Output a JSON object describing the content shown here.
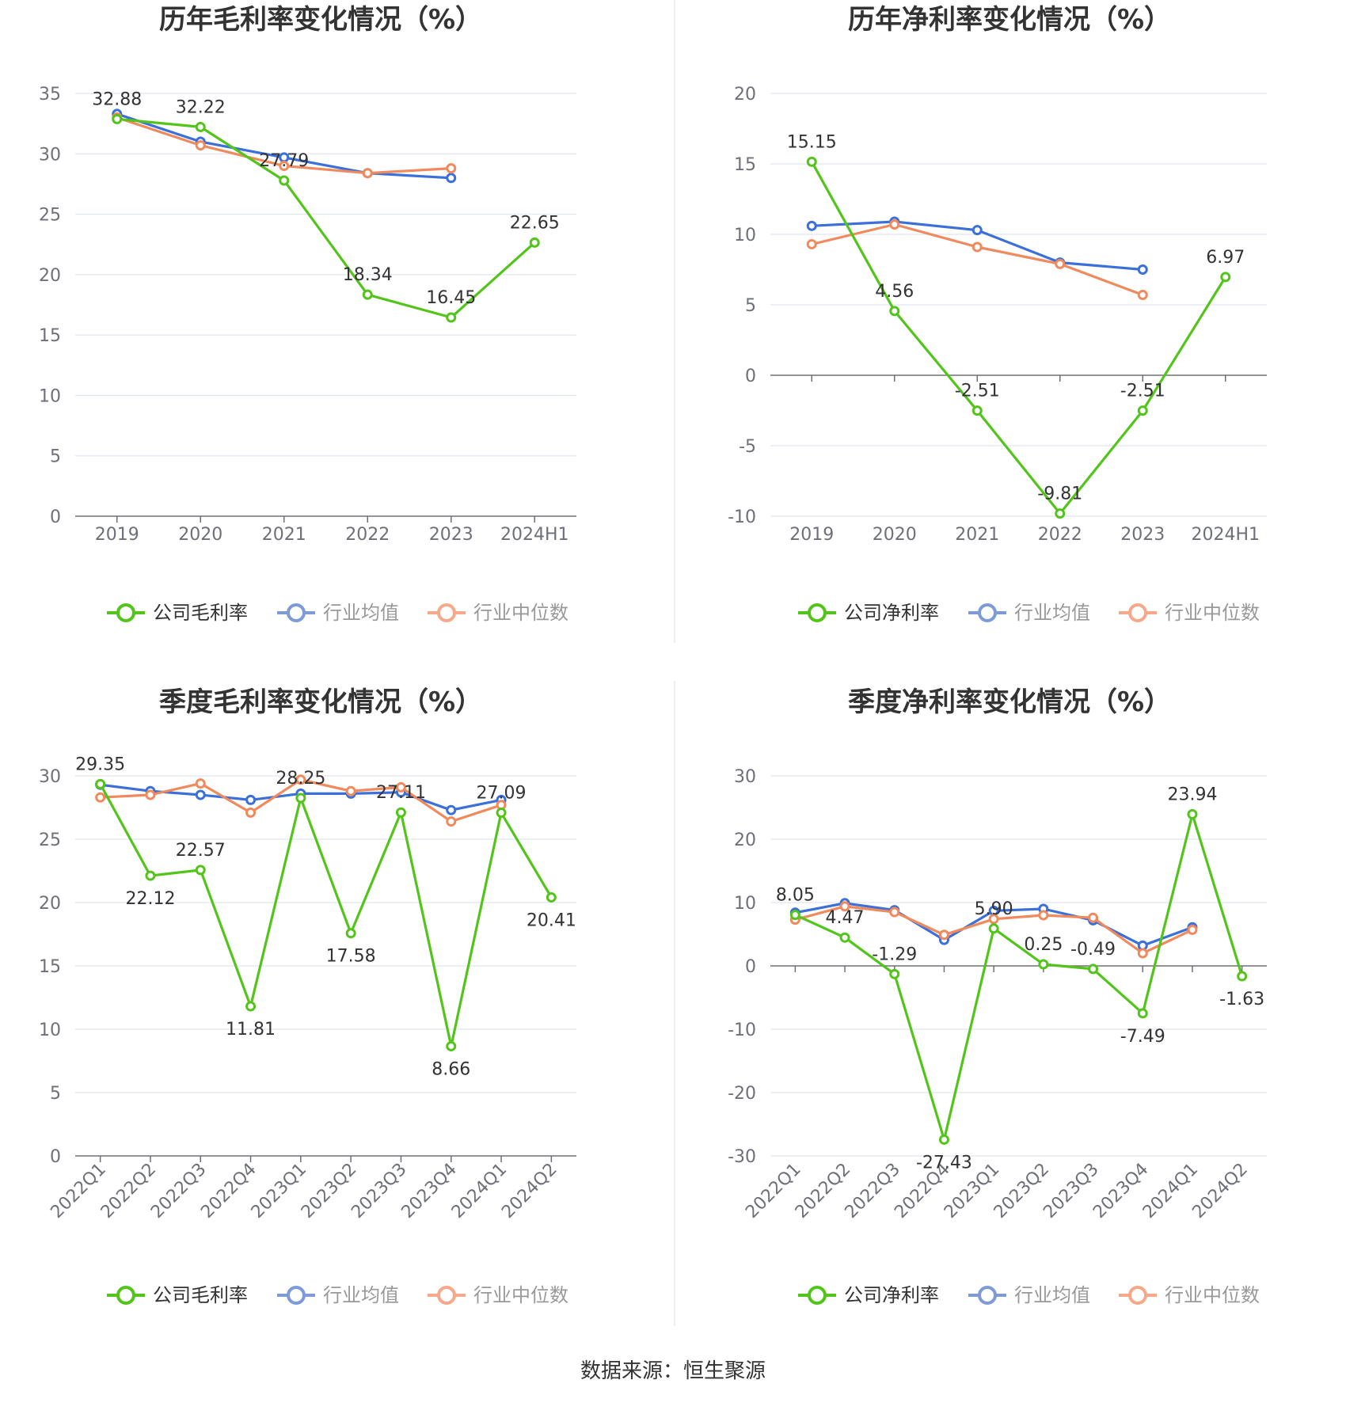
{
  "source_text": "数据来源：恒生聚源",
  "colors": {
    "company": "#52c41a",
    "avg": "#3b6fd9",
    "median": "#f08a5d",
    "grid": "#e0e6f1",
    "axis": "#6e7079",
    "legend_inactive": "#7e9bd8",
    "legend_inactive_text": "#999999"
  },
  "chart_data": [
    {
      "type": "line",
      "title": "历年毛利率变化情况（%）",
      "categories": [
        "2019",
        "2020",
        "2021",
        "2022",
        "2023",
        "2024H1"
      ],
      "ylim": [
        0,
        35
      ],
      "yticks": [
        0,
        5,
        10,
        15,
        20,
        25,
        30,
        35
      ],
      "rotate_x": false,
      "legend": [
        "公司毛利率",
        "行业均值",
        "行业中位数"
      ],
      "series": [
        {
          "name": "公司毛利率",
          "values": [
            32.88,
            32.22,
            27.79,
            18.34,
            16.45,
            22.65
          ],
          "labels": [
            "32.88",
            "32.22",
            "27.79",
            "18.34",
            "16.45",
            "22.65"
          ]
        },
        {
          "name": "行业均值",
          "values": [
            33.3,
            31.0,
            29.7,
            28.4,
            28.0,
            null
          ]
        },
        {
          "name": "行业中位数",
          "values": [
            33.0,
            30.7,
            29.0,
            28.4,
            28.8,
            null
          ]
        }
      ]
    },
    {
      "type": "line",
      "title": "历年净利率变化情况（%）",
      "categories": [
        "2019",
        "2020",
        "2021",
        "2022",
        "2023",
        "2024H1"
      ],
      "ylim": [
        -10,
        20
      ],
      "yticks": [
        -10,
        -5,
        0,
        5,
        10,
        15,
        20
      ],
      "rotate_x": false,
      "legend": [
        "公司净利率",
        "行业均值",
        "行业中位数"
      ],
      "series": [
        {
          "name": "公司净利率",
          "values": [
            15.15,
            4.56,
            -2.51,
            -9.81,
            -2.51,
            6.97
          ],
          "labels": [
            "15.15",
            "4.56",
            "-2.51",
            "-9.81",
            "-2.51",
            "6.97"
          ]
        },
        {
          "name": "行业均值",
          "values": [
            10.6,
            10.9,
            10.3,
            8.0,
            7.5,
            null
          ]
        },
        {
          "name": "行业中位数",
          "values": [
            9.3,
            10.7,
            9.1,
            7.9,
            5.7,
            null
          ]
        }
      ]
    },
    {
      "type": "line",
      "title": "季度毛利率变化情况（%）",
      "categories": [
        "2022Q1",
        "2022Q2",
        "2022Q3",
        "2022Q4",
        "2023Q1",
        "2023Q2",
        "2023Q3",
        "2023Q4",
        "2024Q1",
        "2024Q2"
      ],
      "ylim": [
        0,
        30
      ],
      "yticks": [
        0,
        5,
        10,
        15,
        20,
        25,
        30
      ],
      "rotate_x": true,
      "legend": [
        "公司毛利率",
        "行业均值",
        "行业中位数"
      ],
      "series": [
        {
          "name": "公司毛利率",
          "values": [
            29.35,
            22.12,
            22.57,
            11.81,
            28.25,
            17.58,
            27.11,
            8.66,
            27.09,
            20.41
          ],
          "labels": [
            "29.35",
            "22.12",
            "22.57",
            "11.81",
            "28.25",
            "17.58",
            "27.11",
            "8.66",
            "27.09",
            "20.41"
          ]
        },
        {
          "name": "行业均值",
          "values": [
            29.3,
            28.8,
            28.5,
            28.1,
            28.6,
            28.6,
            28.7,
            27.3,
            28.1,
            null
          ]
        },
        {
          "name": "行业中位数",
          "values": [
            28.3,
            28.5,
            29.4,
            27.1,
            29.7,
            28.8,
            29.1,
            26.4,
            27.7,
            null
          ]
        }
      ]
    },
    {
      "type": "line",
      "title": "季度净利率变化情况（%）",
      "categories": [
        "2022Q1",
        "2022Q2",
        "2022Q3",
        "2022Q4",
        "2023Q1",
        "2023Q2",
        "2023Q3",
        "2023Q4",
        "2024Q1",
        "2024Q2"
      ],
      "ylim": [
        -30,
        30
      ],
      "yticks": [
        -30,
        -20,
        -10,
        0,
        10,
        20,
        30
      ],
      "rotate_x": true,
      "legend": [
        "公司净利率",
        "行业均值",
        "行业中位数"
      ],
      "series": [
        {
          "name": "公司净利率",
          "values": [
            8.05,
            4.47,
            -1.29,
            -27.43,
            5.9,
            0.25,
            -0.49,
            -7.49,
            23.94,
            -1.63
          ],
          "labels": [
            "8.05",
            "4.47",
            "-1.29",
            "-27.43",
            "5.90",
            "0.25",
            "-0.49",
            "-7.49",
            "23.94",
            "-1.63"
          ]
        },
        {
          "name": "行业均值",
          "values": [
            8.4,
            9.9,
            8.8,
            4.1,
            8.7,
            9.0,
            7.2,
            3.2,
            6.1,
            null
          ]
        },
        {
          "name": "行业中位数",
          "values": [
            7.3,
            9.4,
            8.5,
            4.9,
            7.4,
            8.0,
            7.6,
            2.0,
            5.7,
            null
          ]
        }
      ]
    }
  ]
}
